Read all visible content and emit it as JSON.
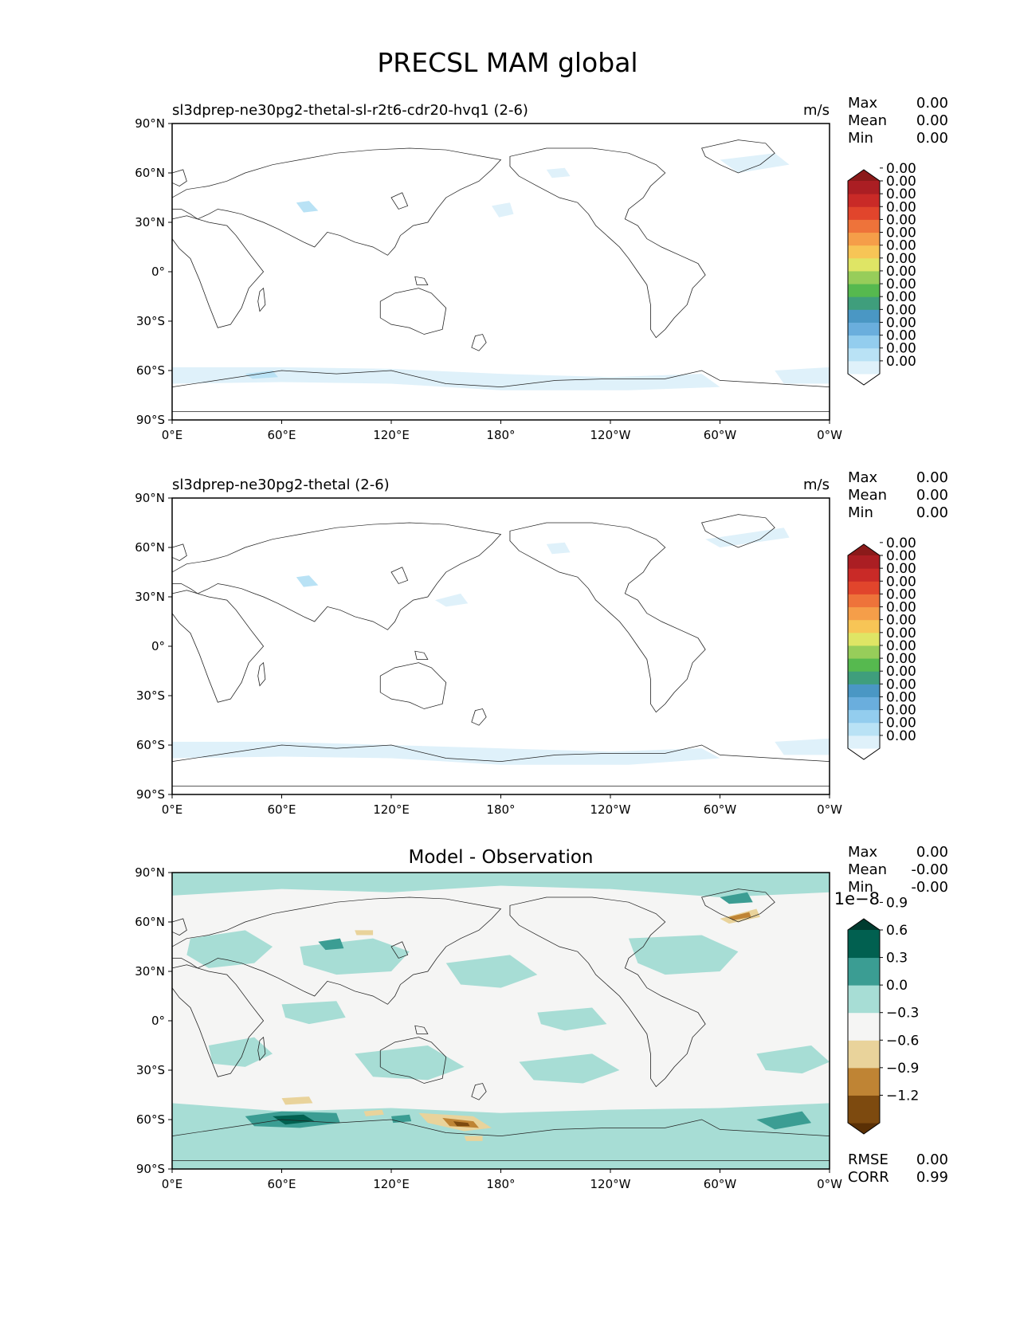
{
  "figure": {
    "title": "PRECSL MAM global"
  },
  "chart_data": [
    {
      "type": "heatmap",
      "title": "sl3dprep-ne30pg2-thetal-sl-r2t6-cdr20-hvq1 (2-6)",
      "units": "m/s",
      "xlabel": "",
      "ylabel": "",
      "x_ticks": [
        "0°E",
        "60°E",
        "120°E",
        "180°",
        "120°W",
        "60°W",
        "0°W"
      ],
      "y_ticks": [
        "90°N",
        "60°N",
        "30°N",
        "0°",
        "30°S",
        "60°S",
        "90°S"
      ],
      "stats": [
        {
          "label": "Max",
          "value": "0.00"
        },
        {
          "label": "Mean",
          "value": "0.00"
        },
        {
          "label": "Min",
          "value": "0.00"
        }
      ],
      "colorbar": {
        "colors": [
          "#ffffff",
          "#dff1fa",
          "#b9e2f5",
          "#93cdee",
          "#6aaedd",
          "#4a97c4",
          "#3f9e7c",
          "#56b94f",
          "#97cd5a",
          "#dfe565",
          "#f7c556",
          "#f59e49",
          "#ee733a",
          "#e1452c",
          "#c92a27",
          "#ab1e23",
          "#8b1a1a"
        ],
        "tick_labels": [
          "0.00",
          "0.00",
          "0.00",
          "0.00",
          "0.00",
          "0.00",
          "0.00",
          "0.00",
          "0.00",
          "0.00",
          "0.00",
          "0.00",
          "0.00",
          "0.00",
          "0.00",
          "0.00"
        ],
        "extend": "both"
      }
    },
    {
      "type": "heatmap",
      "title": "sl3dprep-ne30pg2-thetal (2-6)",
      "units": "m/s",
      "xlabel": "",
      "ylabel": "",
      "x_ticks": [
        "0°E",
        "60°E",
        "120°E",
        "180°",
        "120°W",
        "60°W",
        "0°W"
      ],
      "y_ticks": [
        "90°N",
        "60°N",
        "30°N",
        "0°",
        "30°S",
        "60°S",
        "90°S"
      ],
      "stats": [
        {
          "label": "Max",
          "value": "0.00"
        },
        {
          "label": "Mean",
          "value": "0.00"
        },
        {
          "label": "Min",
          "value": "0.00"
        }
      ],
      "colorbar": {
        "colors": [
          "#ffffff",
          "#dff1fa",
          "#b9e2f5",
          "#93cdee",
          "#6aaedd",
          "#4a97c4",
          "#3f9e7c",
          "#56b94f",
          "#97cd5a",
          "#dfe565",
          "#f7c556",
          "#f59e49",
          "#ee733a",
          "#e1452c",
          "#c92a27",
          "#ab1e23",
          "#8b1a1a"
        ],
        "tick_labels": [
          "0.00",
          "0.00",
          "0.00",
          "0.00",
          "0.00",
          "0.00",
          "0.00",
          "0.00",
          "0.00",
          "0.00",
          "0.00",
          "0.00",
          "0.00",
          "0.00",
          "0.00",
          "0.00"
        ],
        "extend": "both"
      }
    },
    {
      "type": "heatmap",
      "title": "Model - Observation",
      "units": "",
      "xlabel": "",
      "ylabel": "",
      "x_ticks": [
        "0°E",
        "60°E",
        "120°E",
        "180°",
        "120°W",
        "60°W",
        "0°W"
      ],
      "y_ticks": [
        "90°N",
        "60°N",
        "30°N",
        "0°",
        "30°S",
        "60°S",
        "90°S"
      ],
      "stats": [
        {
          "label": "Max",
          "value": "0.00"
        },
        {
          "label": "Mean",
          "value": "-0.00"
        },
        {
          "label": "Min",
          "value": "-0.00"
        }
      ],
      "bottom_stats": [
        {
          "label": "RMSE",
          "value": "0.00"
        },
        {
          "label": "CORR",
          "value": "0.99"
        }
      ],
      "colorbar": {
        "colors": [
          "#5a3005",
          "#7d4a0f",
          "#bf8434",
          "#e9d39b",
          "#f5f5f4",
          "#a7ddd5",
          "#3b9d93",
          "#016050",
          "#003b2f"
        ],
        "tick_labels": [
          "−1.2",
          "−0.9",
          "−0.6",
          "−0.3",
          "0.0",
          "0.3",
          "0.6",
          "0.9"
        ],
        "multiplier": "1e−8",
        "extend": "both"
      }
    }
  ]
}
